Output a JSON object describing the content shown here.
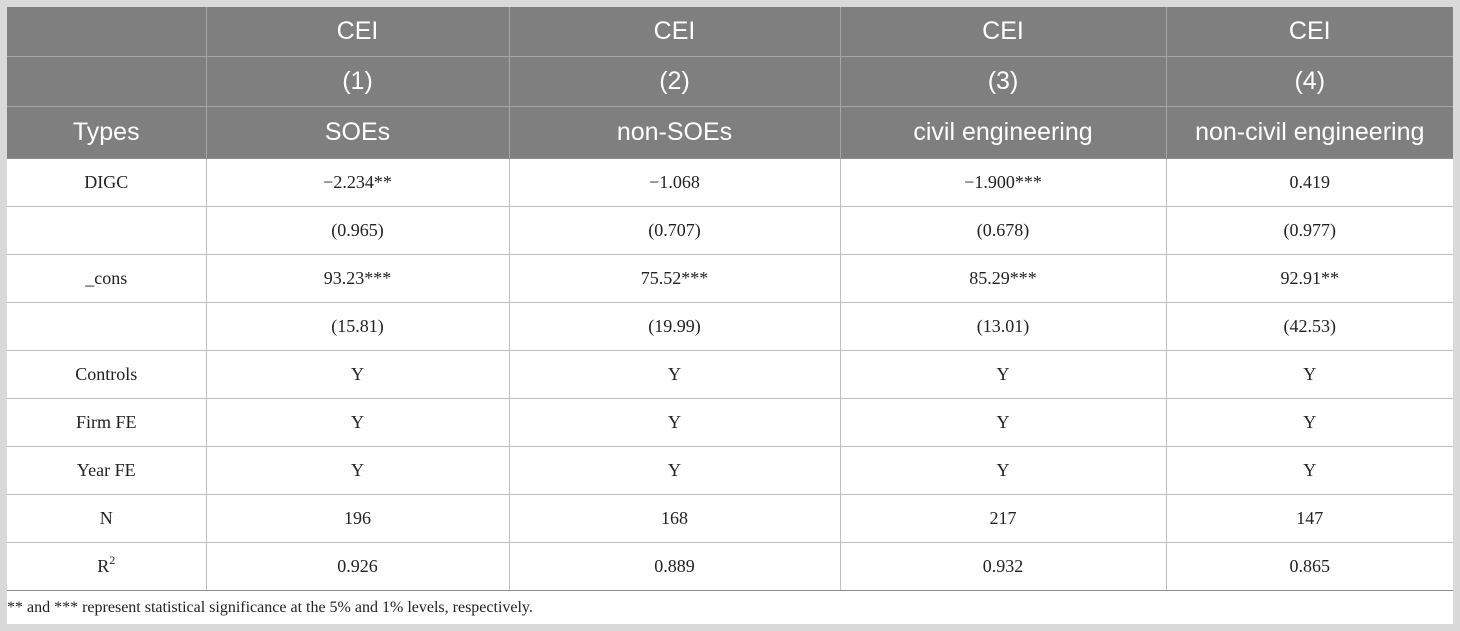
{
  "header": {
    "row1": [
      "",
      "CEI",
      "CEI",
      "CEI",
      "CEI"
    ],
    "row2": [
      "",
      "(1)",
      "(2)",
      "(3)",
      "(4)"
    ],
    "row3": [
      "Types",
      "SOEs",
      "non-SOEs",
      "civil engineering",
      "non-civil engineering"
    ]
  },
  "rows": [
    {
      "label": "DIGC",
      "values": [
        "−2.234**",
        "−1.068",
        "−1.900***",
        "0.419"
      ]
    },
    {
      "label": "",
      "values": [
        "(0.965)",
        "(0.707)",
        "(0.678)",
        "(0.977)"
      ]
    },
    {
      "label": "_cons",
      "values": [
        "93.23***",
        "75.52***",
        "85.29***",
        "92.91**"
      ]
    },
    {
      "label": "",
      "values": [
        "(15.81)",
        "(19.99)",
        "(13.01)",
        "(42.53)"
      ]
    },
    {
      "label": "Controls",
      "values": [
        "Y",
        "Y",
        "Y",
        "Y"
      ]
    },
    {
      "label": "Firm FE",
      "values": [
        "Y",
        "Y",
        "Y",
        "Y"
      ]
    },
    {
      "label": "Year FE",
      "values": [
        "Y",
        "Y",
        "Y",
        "Y"
      ]
    },
    {
      "label": "N",
      "values": [
        "196",
        "168",
        "217",
        "147"
      ]
    },
    {
      "label": "R",
      "label_sup": "2",
      "values": [
        "0.926",
        "0.889",
        "0.932",
        "0.865"
      ]
    }
  ],
  "note": "** and *** represent statistical significance at the 5% and 1% levels, respectively."
}
